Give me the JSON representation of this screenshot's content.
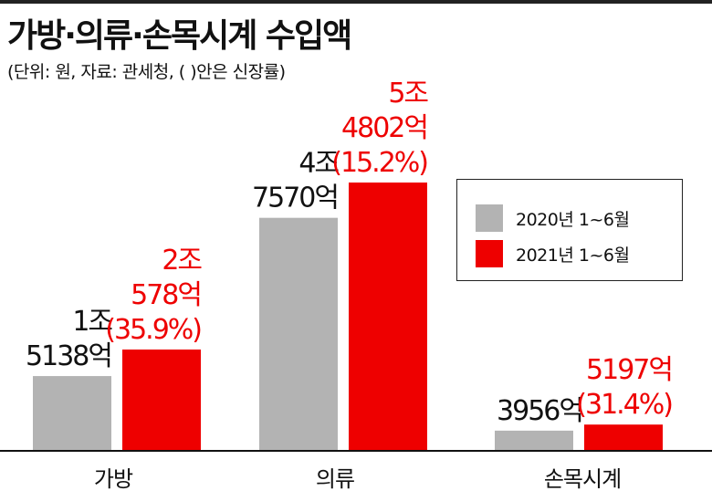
{
  "title": "가방·의류·손목시계 수입액",
  "subtitle": "(단위: 원, 자료: 관세청, (   )안은 신장률)",
  "colors": {
    "series_2020": "#b3b3b3",
    "series_2021": "#ee0000",
    "axis": "#111111"
  },
  "chart_data": {
    "type": "bar",
    "title": "가방·의류·손목시계 수입액",
    "categories": [
      "가방",
      "의류",
      "손목시계"
    ],
    "unit": "억원",
    "series": [
      {
        "name": "2020년 1~6월",
        "values": [
          15138,
          47570,
          3956
        ],
        "labels": [
          "1조\n5138억",
          "4조\n7570억",
          "3956억"
        ]
      },
      {
        "name": "2021년 1~6월",
        "values": [
          20578,
          54802,
          5197
        ],
        "labels": [
          "2조\n578억\n(35.9%)",
          "5조\n4802억\n(15.2%)",
          "5197억\n(31.4%)"
        ]
      }
    ],
    "growth_rates": [
      "35.9%",
      "15.2%",
      "31.4%"
    ],
    "legend": "right"
  }
}
